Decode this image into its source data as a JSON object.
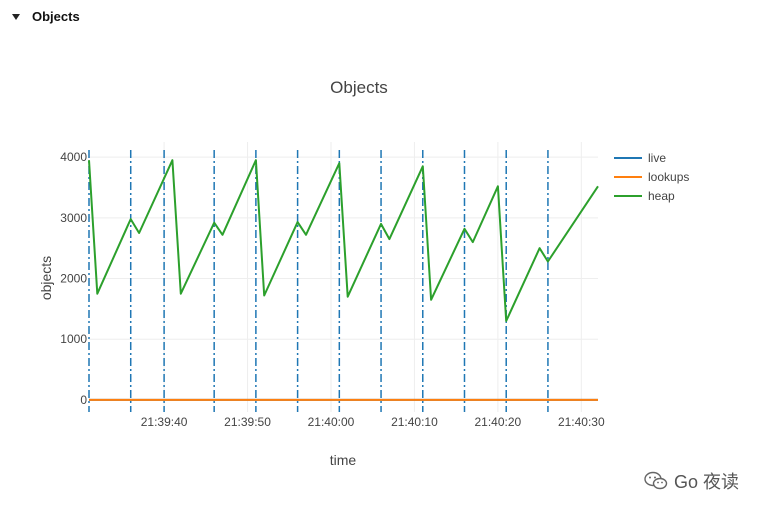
{
  "section": {
    "title": "Objects"
  },
  "watermark": {
    "text": "Go 夜读"
  },
  "chart_data": {
    "type": "line",
    "title": "Objects",
    "xlabel": "time",
    "ylabel": "objects",
    "xlim": [
      "21:39:31",
      "21:40:32"
    ],
    "ylim": [
      -200,
      4250
    ],
    "x_ticks": [
      "21:39:40",
      "21:39:50",
      "21:40:00",
      "21:40:10",
      "21:40:20",
      "21:40:30"
    ],
    "y_ticks": [
      0,
      1000,
      2000,
      3000,
      4000
    ],
    "grid": true,
    "legend_position": "right",
    "gc_markers": [
      "21:39:31",
      "21:39:36",
      "21:39:40",
      "21:39:46",
      "21:39:51",
      "21:39:56",
      "21:40:01",
      "21:40:06",
      "21:40:11",
      "21:40:16",
      "21:40:21",
      "21:40:26"
    ],
    "series": [
      {
        "name": "live",
        "color": "#1f77b4",
        "points": [
          [
            "21:39:31",
            0
          ],
          [
            "21:40:32",
            0
          ]
        ]
      },
      {
        "name": "lookups",
        "color": "#ff7f0e",
        "points": [
          [
            "21:39:31",
            0
          ],
          [
            "21:40:32",
            0
          ]
        ]
      },
      {
        "name": "heap",
        "color": "#2ca02c",
        "points": [
          [
            "21:39:31",
            3950
          ],
          [
            "21:39:32",
            1750
          ],
          [
            "21:39:36",
            2980
          ],
          [
            "21:39:37",
            2750
          ],
          [
            "21:39:41",
            3950
          ],
          [
            "21:39:42",
            1750
          ],
          [
            "21:39:46",
            2920
          ],
          [
            "21:39:47",
            2720
          ],
          [
            "21:39:51",
            3950
          ],
          [
            "21:39:52",
            1720
          ],
          [
            "21:39:56",
            2930
          ],
          [
            "21:39:57",
            2720
          ],
          [
            "21:40:01",
            3900
          ],
          [
            "21:40:02",
            1700
          ],
          [
            "21:40:06",
            2900
          ],
          [
            "21:40:07",
            2650
          ],
          [
            "21:40:11",
            3850
          ],
          [
            "21:40:12",
            1650
          ],
          [
            "21:40:16",
            2820
          ],
          [
            "21:40:17",
            2600
          ],
          [
            "21:40:20",
            3520
          ],
          [
            "21:40:21",
            1300
          ],
          [
            "21:40:25",
            2500
          ],
          [
            "21:40:26",
            2280
          ],
          [
            "21:40:32",
            3520
          ]
        ]
      }
    ]
  }
}
